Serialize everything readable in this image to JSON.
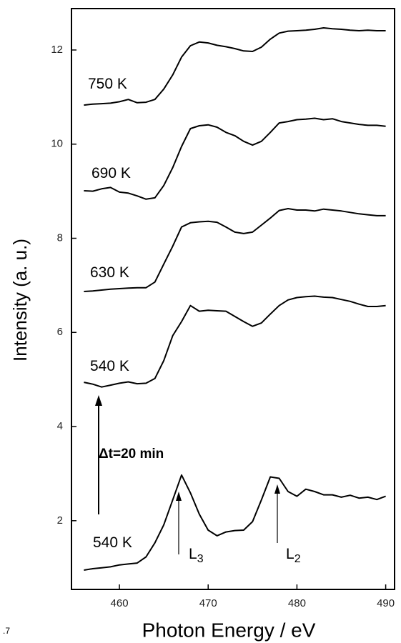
{
  "chart_data": {
    "type": "line",
    "x_label": "Photon Energy / eV",
    "y_label": "Intensity (a. u.)",
    "corner_text": ".7",
    "x": [
      456,
      457,
      458,
      459,
      460,
      461,
      462,
      463,
      464,
      465,
      466,
      467,
      468,
      469,
      470,
      471,
      472,
      473,
      474,
      475,
      476,
      477,
      478,
      479,
      480,
      481,
      482,
      483,
      484,
      485,
      486,
      487,
      488,
      489,
      490
    ],
    "series": [
      {
        "color": "#000000",
        "values": [
          10.83,
          10.85,
          10.86,
          10.87,
          10.9,
          10.95,
          10.88,
          10.89,
          10.95,
          11.17,
          11.47,
          11.85,
          12.09,
          12.17,
          12.15,
          12.1,
          12.07,
          12.03,
          11.98,
          11.97,
          12.06,
          12.23,
          12.36,
          12.4,
          12.41,
          12.42,
          12.44,
          12.47,
          12.45,
          12.44,
          12.42,
          12.41,
          12.42,
          12.41,
          12.41
        ]
      },
      {
        "color": "#000000",
        "values": [
          9.01,
          9.0,
          9.05,
          9.08,
          8.98,
          8.96,
          8.9,
          8.83,
          8.86,
          9.12,
          9.5,
          9.95,
          10.33,
          10.39,
          10.41,
          10.36,
          10.25,
          10.18,
          10.06,
          9.98,
          10.06,
          10.25,
          10.45,
          10.48,
          10.52,
          10.53,
          10.55,
          10.52,
          10.54,
          10.48,
          10.45,
          10.42,
          10.4,
          10.4,
          10.38
        ]
      },
      {
        "color": "#000000",
        "values": [
          6.87,
          6.88,
          6.9,
          6.92,
          6.93,
          6.94,
          6.95,
          6.95,
          7.07,
          7.45,
          7.83,
          8.24,
          8.33,
          8.35,
          8.36,
          8.34,
          8.24,
          8.13,
          8.1,
          8.13,
          8.28,
          8.43,
          8.59,
          8.63,
          8.6,
          8.6,
          8.58,
          8.62,
          8.6,
          8.58,
          8.55,
          8.52,
          8.5,
          8.48,
          8.48
        ]
      },
      {
        "color": "#000000",
        "values": [
          4.94,
          4.9,
          4.84,
          4.88,
          4.92,
          4.95,
          4.91,
          4.92,
          5.02,
          5.4,
          5.93,
          6.23,
          6.57,
          6.45,
          6.47,
          6.46,
          6.45,
          6.34,
          6.23,
          6.13,
          6.2,
          6.39,
          6.57,
          6.69,
          6.74,
          6.76,
          6.77,
          6.75,
          6.74,
          6.7,
          6.66,
          6.6,
          6.55,
          6.55,
          6.57
        ]
      },
      {
        "color": "#000000",
        "values": [
          0.95,
          0.98,
          1.0,
          1.02,
          1.06,
          1.08,
          1.1,
          1.23,
          1.53,
          1.91,
          2.44,
          2.97,
          2.59,
          2.14,
          1.8,
          1.68,
          1.76,
          1.79,
          1.8,
          1.98,
          2.44,
          2.93,
          2.9,
          2.62,
          2.52,
          2.67,
          2.62,
          2.55,
          2.55,
          2.5,
          2.54,
          2.48,
          2.5,
          2.45,
          2.52
        ]
      }
    ],
    "annotations": [
      {
        "text": "750 K"
      },
      {
        "text": "690 K"
      },
      {
        "text": "630 K"
      },
      {
        "text": "540 K"
      },
      {
        "text": "Δt=20 min"
      },
      {
        "text": "540 K"
      },
      {
        "text": "L",
        "subscript": "3"
      },
      {
        "text": "L",
        "subscript": "2"
      }
    ],
    "xlim": [
      454.6,
      491
    ],
    "ylim": [
      0.54,
      12.88
    ],
    "xticks": [
      460,
      470,
      480,
      490
    ],
    "yticks": [
      2,
      4,
      6,
      8,
      10,
      12
    ]
  }
}
